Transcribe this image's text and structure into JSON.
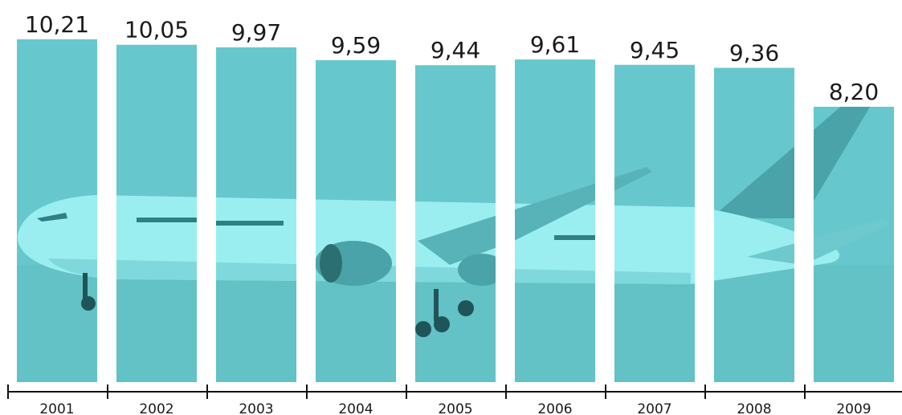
{
  "chart_data": {
    "type": "bar",
    "categories": [
      "2001",
      "2002",
      "2003",
      "2004",
      "2005",
      "2006",
      "2007",
      "2008",
      "2009"
    ],
    "values": [
      10.21,
      10.05,
      9.97,
      9.59,
      9.44,
      9.61,
      9.45,
      9.36,
      8.2
    ],
    "value_labels": [
      "10,21",
      "10,05",
      "9,97",
      "9,59",
      "9,44",
      "9,61",
      "9,45",
      "9,36",
      "8,20"
    ],
    "bar_color": "#66C8CC",
    "axis_color": "#111111",
    "background_image": "airplane-photo-teal-tint",
    "ylim": [
      0,
      10.6
    ],
    "grid": false
  }
}
